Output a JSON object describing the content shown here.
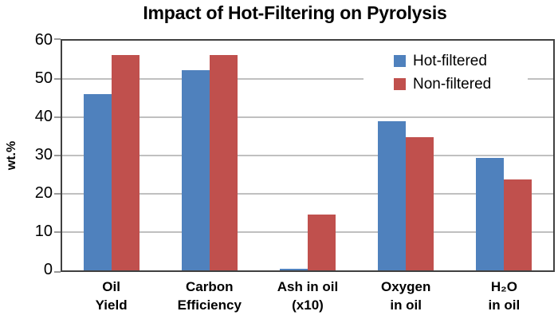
{
  "chart_data": {
    "type": "bar",
    "title": "Impact of Hot-Filtering on Pyrolysis",
    "ylabel": "wt.%",
    "xlabel": "",
    "ylim": [
      0,
      60
    ],
    "ytick_step": 10,
    "yticks": [
      0,
      10,
      20,
      30,
      40,
      50,
      60
    ],
    "grid": true,
    "legend_position": "top-right-inside",
    "categories": [
      [
        "Oil",
        "Yield"
      ],
      [
        "Carbon",
        "Efficiency"
      ],
      [
        "Ash in oil",
        "(x10)"
      ],
      [
        "Oxygen",
        "in oil"
      ],
      [
        "H₂O",
        "in oil"
      ]
    ],
    "series": [
      {
        "name": "Hot-filtered",
        "color": "#4F81BD",
        "values": [
          46,
          52.2,
          0.4,
          39,
          29.3
        ]
      },
      {
        "name": "Non-filtered",
        "color": "#C0504D",
        "values": [
          56.2,
          56.2,
          14.5,
          34.8,
          23.7
        ]
      }
    ],
    "colors": {
      "grid": "#C0C0C0",
      "axis_border": "#404040",
      "tick": "#999999",
      "text": "#000000",
      "background": "#FFFFFF"
    }
  }
}
